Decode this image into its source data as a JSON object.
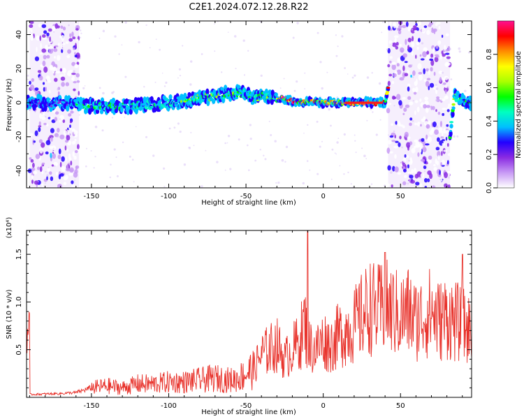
{
  "title": "C2E1.2024.072.12.28.R22",
  "chart_data": [
    {
      "type": "heatmap",
      "xlabel": "Height of straight line (km)",
      "ylabel": "Frequency (Hz)",
      "xlim": [
        -192,
        96
      ],
      "ylim": [
        -50,
        48
      ],
      "x_ticks": [
        -150,
        -100,
        -50,
        0,
        50
      ],
      "y_ticks": [
        -40,
        -20,
        0,
        20,
        40
      ],
      "colorbar": {
        "label": "Normalized spectral amplitude",
        "range": [
          0,
          1
        ],
        "ticks": [
          "0.0",
          "0.2",
          "0.4",
          "0.6",
          "0.8"
        ],
        "colors": [
          "#ffffff",
          "#c89af5",
          "#8a2be2",
          "#2200ff",
          "#00bfff",
          "#00ffc0",
          "#00ff00",
          "#aaff00",
          "#ffff00",
          "#ff8c00",
          "#ff0000",
          "#ff1090"
        ]
      },
      "ridge": {
        "x": [
          -190,
          -170,
          -150,
          -130,
          -110,
          -90,
          -75,
          -60,
          -50,
          -45,
          -40,
          -30,
          -25,
          -20,
          -15,
          -10,
          0,
          10,
          20,
          30,
          40,
          42,
          44,
          80,
          82,
          85,
          90,
          95
        ],
        "y": [
          0,
          0,
          -2,
          -2,
          -1,
          1,
          3,
          6,
          5,
          3,
          4,
          3,
          2,
          1,
          0,
          1,
          0,
          0,
          0,
          0,
          0,
          8,
          14,
          0,
          -20,
          4,
          1,
          0
        ]
      },
      "noise_regions": [
        {
          "x": [
            -190,
            -158
          ],
          "y": [
            -50,
            48
          ]
        },
        {
          "x": [
            42,
            82
          ],
          "y": [
            -50,
            48
          ]
        }
      ]
    },
    {
      "type": "line",
      "xlabel": "Height of straight line (km)",
      "ylabel": "SNR (10 * v/v)",
      "y_multiplier": "(x10⁴)",
      "xlim": [
        -192,
        96
      ],
      "ylim": [
        0,
        17500
      ],
      "x_ticks": [
        -150,
        -100,
        -50,
        0,
        50
      ],
      "y_ticks": [
        5000,
        10000,
        15000
      ],
      "y_tick_labels": [
        "0.5",
        "1.0",
        "1.5"
      ],
      "color": "#e8322b",
      "series": [
        {
          "x": [
            -190,
            -170,
            -160,
            -150,
            -140,
            -130,
            -120,
            -110,
            -100,
            -90,
            -80,
            -70,
            -60,
            -55,
            -50,
            -45,
            -40,
            -35,
            -30,
            -25,
            -20,
            -15,
            -12,
            -10,
            -5,
            0,
            5,
            10,
            15,
            20,
            25,
            30,
            35,
            40,
            45,
            50,
            55,
            60,
            65,
            70,
            75,
            80,
            85,
            90,
            95
          ],
          "values": [
            300,
            400,
            500,
            1000,
            1200,
            1000,
            1400,
            1400,
            1600,
            1600,
            1800,
            2000,
            1800,
            2000,
            2500,
            3000,
            4500,
            5000,
            5500,
            4000,
            5000,
            6000,
            8000,
            5500,
            5000,
            6000,
            5500,
            6500,
            7000,
            7500,
            8500,
            9500,
            9000,
            9500,
            9000,
            8500,
            9000,
            8000,
            8500,
            9000,
            8000,
            8500,
            8000,
            7500,
            7000
          ]
        }
      ],
      "peaks": [
        {
          "x": -10,
          "y": 17500
        },
        {
          "x": 40,
          "y": 15200
        },
        {
          "x": 90,
          "y": 15000
        }
      ]
    }
  ]
}
